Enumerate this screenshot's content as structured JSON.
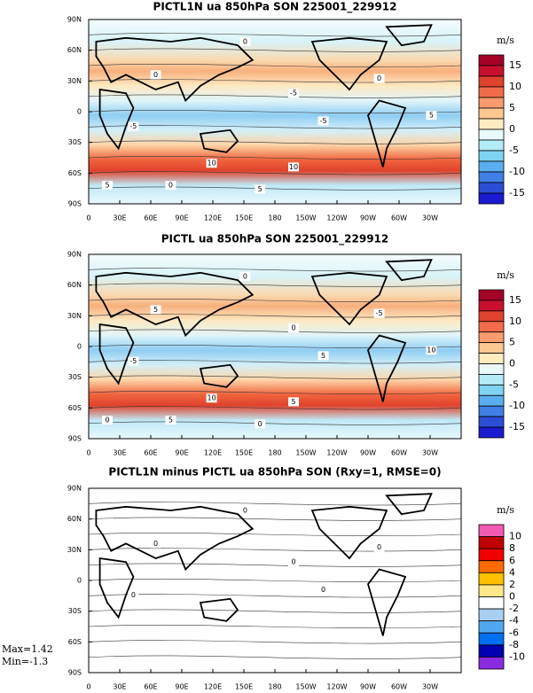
{
  "panels": [
    {
      "title": "PICTL1N ua 850hPa SON 225001_229912",
      "colorbar": {
        "unit": "m/s",
        "labels": [
          15,
          10,
          5,
          0,
          -5,
          -10,
          -15
        ],
        "colors": [
          "#a50026",
          "#c8102e",
          "#e0422c",
          "#f26c4b",
          "#f99a6f",
          "#fdc791",
          "#feecc0",
          "#eafafc",
          "#b3ecf7",
          "#7fd3f2",
          "#5aaef0",
          "#3f7fe6",
          "#2b4ed6",
          "#1a1ad0"
        ]
      },
      "contour_labels": [
        "0",
        "0",
        "-5",
        "0",
        "-5",
        "-5",
        "5",
        "10",
        "10",
        "5",
        "0",
        "5"
      ]
    },
    {
      "title": "PICTL ua 850hPa SON 225001_229912",
      "colorbar": {
        "unit": "m/s",
        "labels": [
          15,
          10,
          5,
          0,
          -5,
          -10,
          -15
        ],
        "colors": [
          "#a50026",
          "#c8102e",
          "#e0422c",
          "#f26c4b",
          "#f99a6f",
          "#fdc791",
          "#feecc0",
          "#eafafc",
          "#b3ecf7",
          "#7fd3f2",
          "#5aaef0",
          "#3f7fe6",
          "#2b4ed6",
          "#1a1ad0"
        ]
      },
      "contour_labels": [
        "0",
        "5",
        "0",
        "-5",
        "-5",
        "5",
        "10",
        "10",
        "5",
        "0",
        "5",
        "0"
      ]
    },
    {
      "title": "PICTL1N minus PICTL ua 850hPa SON (Rxy=1, RMSE=0)",
      "colorbar": {
        "unit": "m/s",
        "labels": [
          10,
          8,
          6,
          4,
          2,
          0,
          -2,
          -4,
          -6,
          -8,
          -10
        ],
        "colors": [
          "#f25ab4",
          "#c00000",
          "#f00000",
          "#ff6a00",
          "#ffc000",
          "#ffe88a",
          "#ffffff",
          "#a8cff0",
          "#50a8f0",
          "#0070f0",
          "#0000b0",
          "#8a2be2"
        ]
      },
      "contour_labels": [
        "0",
        "0",
        "0",
        "0",
        "0",
        "0"
      ]
    }
  ],
  "x_ticks": [
    "0",
    "30E",
    "60E",
    "90E",
    "120E",
    "150E",
    "180",
    "150W",
    "120W",
    "90W",
    "60W",
    "30W"
  ],
  "y_ticks": [
    "90N",
    "60N",
    "30N",
    "0",
    "30S",
    "60S",
    "90S"
  ],
  "stats": [
    "Max=1.42",
    "Min=-1.3"
  ]
}
